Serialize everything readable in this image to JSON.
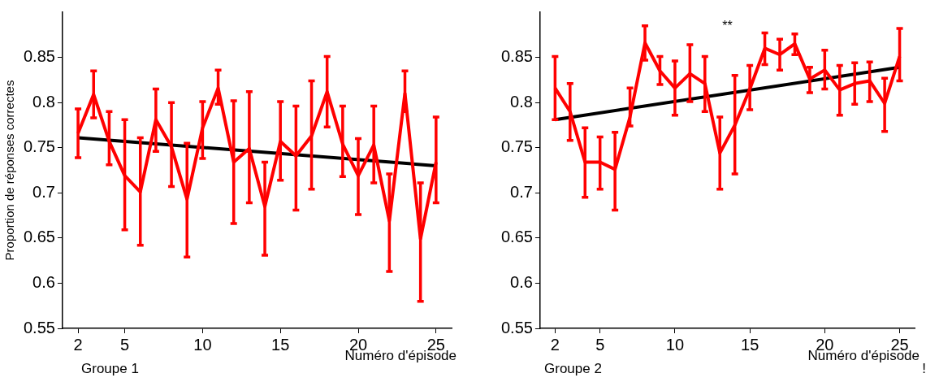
{
  "chart_data": [
    {
      "type": "line",
      "xlabel": "Numéro d'épisode",
      "ylabel": "Proportion de réponses correctes",
      "x": [
        2,
        3,
        4,
        5,
        6,
        7,
        8,
        9,
        10,
        11,
        12,
        13,
        14,
        15,
        16,
        17,
        18,
        19,
        20,
        21,
        22,
        23,
        24,
        25
      ],
      "xlim": [
        1,
        26
      ],
      "xticks": [
        2,
        5,
        10,
        15,
        20,
        25
      ],
      "ylim": [
        0.55,
        0.9
      ],
      "yticks": [
        0.55,
        0.6,
        0.65,
        0.7,
        0.75,
        0.8,
        0.85
      ],
      "grid": false,
      "legend": false,
      "marker": "none",
      "line_style": "solid",
      "series": [
        {
          "color": "#ff0000",
          "values": [
            0.766,
            0.809,
            0.757,
            0.719,
            0.701,
            0.781,
            0.751,
            0.693,
            0.772,
            0.816,
            0.734,
            0.749,
            0.685,
            0.757,
            0.741,
            0.763,
            0.812,
            0.754,
            0.719,
            0.753,
            0.669,
            0.81,
            0.649,
            0.734
          ],
          "errors": [
            [
              0.739,
              0.793
            ],
            [
              0.783,
              0.835
            ],
            [
              0.731,
              0.79
            ],
            [
              0.659,
              0.781
            ],
            [
              0.642,
              0.761
            ],
            [
              0.746,
              0.815
            ],
            [
              0.707,
              0.8
            ],
            [
              0.629,
              0.755
            ],
            [
              0.738,
              0.801
            ],
            [
              0.798,
              0.836
            ],
            [
              0.666,
              0.802
            ],
            [
              0.689,
              0.812
            ],
            [
              0.631,
              0.734
            ],
            [
              0.714,
              0.801
            ],
            [
              0.681,
              0.796
            ],
            [
              0.704,
              0.824
            ],
            [
              0.773,
              0.851
            ],
            [
              0.718,
              0.796
            ],
            [
              0.676,
              0.76
            ],
            [
              0.711,
              0.796
            ],
            [
              0.613,
              0.721
            ],
            [
              0.79,
              0.835
            ],
            [
              0.58,
              0.711
            ],
            [
              0.689,
              0.784
            ]
          ]
        },
        {
          "type": "line",
          "color": "#000000",
          "values": [
            0.761,
            null,
            null,
            null,
            null,
            null,
            null,
            null,
            null,
            null,
            null,
            null,
            null,
            null,
            null,
            null,
            null,
            null,
            null,
            null,
            null,
            null,
            null,
            0.73
          ]
        }
      ],
      "annotations": [
        "Groupe 1"
      ]
    },
    {
      "type": "line",
      "xlabel": "Numéro d'épisode",
      "x": [
        2,
        3,
        4,
        5,
        6,
        7,
        8,
        9,
        10,
        11,
        12,
        13,
        14,
        15,
        16,
        17,
        18,
        19,
        20,
        21,
        22,
        23,
        24,
        25
      ],
      "xlim": [
        1,
        26
      ],
      "xticks": [
        2,
        5,
        10,
        15,
        20,
        25
      ],
      "ylim": [
        0.55,
        0.9
      ],
      "yticks": [
        0.55,
        0.6,
        0.65,
        0.7,
        0.75,
        0.8,
        0.85
      ],
      "grid": false,
      "legend": false,
      "marker": "none",
      "line_style": "solid",
      "series": [
        {
          "color": "#ff0000",
          "values": [
            0.816,
            0.79,
            0.734,
            0.734,
            0.726,
            0.784,
            0.866,
            0.835,
            0.816,
            0.832,
            0.821,
            0.744,
            0.775,
            0.815,
            0.86,
            0.853,
            0.865,
            0.826,
            0.836,
            0.814,
            0.821,
            0.824,
            0.799,
            0.851
          ],
          "errors": [
            [
              0.781,
              0.851
            ],
            [
              0.758,
              0.821
            ],
            [
              0.695,
              0.772
            ],
            [
              0.704,
              0.762
            ],
            [
              0.681,
              0.767
            ],
            [
              0.774,
              0.816
            ],
            [
              0.847,
              0.885
            ],
            [
              0.82,
              0.851
            ],
            [
              0.786,
              0.846
            ],
            [
              0.801,
              0.864
            ],
            [
              0.79,
              0.851
            ],
            [
              0.704,
              0.784
            ],
            [
              0.721,
              0.83
            ],
            [
              0.792,
              0.841
            ],
            [
              0.842,
              0.877
            ],
            [
              0.836,
              0.87
            ],
            [
              0.853,
              0.876
            ],
            [
              0.811,
              0.839
            ],
            [
              0.815,
              0.858
            ],
            [
              0.786,
              0.841
            ],
            [
              0.798,
              0.844
            ],
            [
              0.801,
              0.845
            ],
            [
              0.768,
              0.827
            ],
            [
              0.824,
              0.882
            ]
          ]
        },
        {
          "type": "line",
          "color": "#000000",
          "values": [
            0.781,
            null,
            null,
            null,
            null,
            null,
            null,
            null,
            null,
            null,
            null,
            null,
            null,
            null,
            null,
            null,
            null,
            null,
            null,
            null,
            null,
            null,
            null,
            0.839
          ]
        }
      ],
      "title": "**",
      "annotations": [
        "Groupe 2",
        "!"
      ]
    }
  ]
}
